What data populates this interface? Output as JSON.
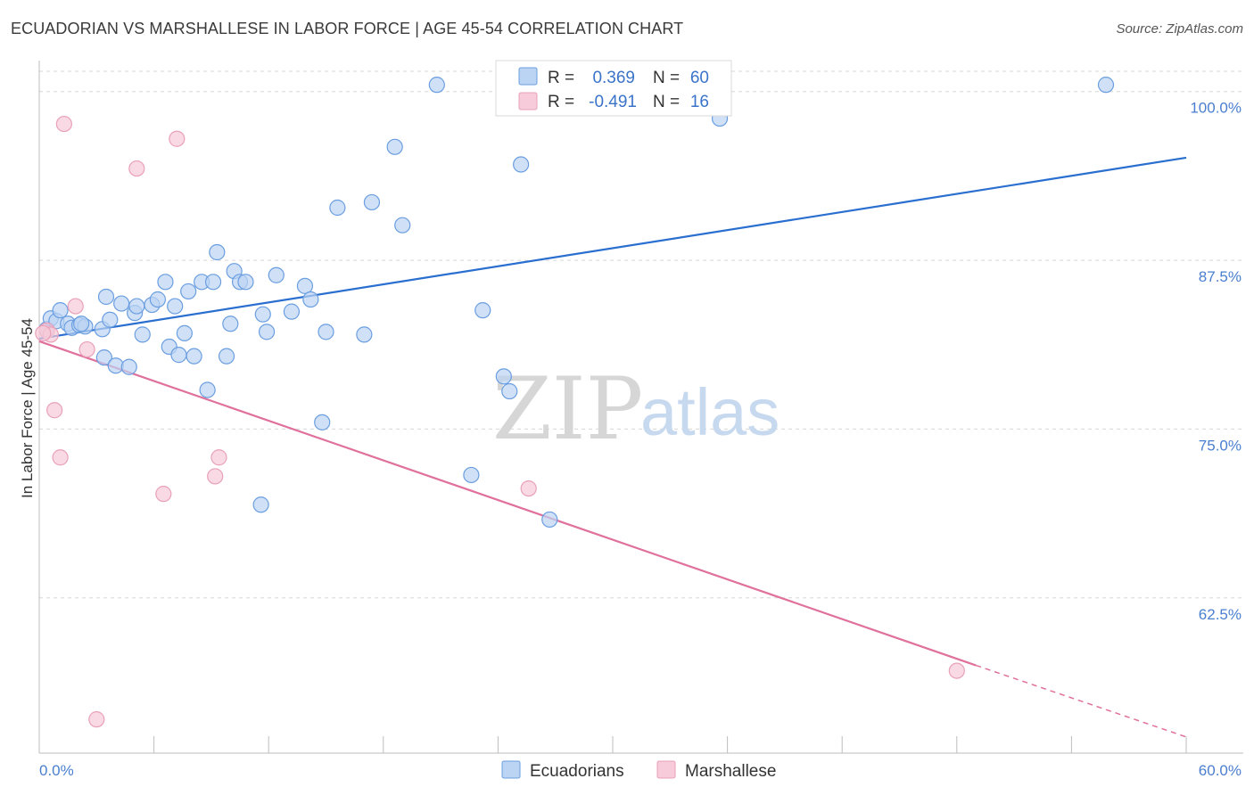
{
  "title": "ECUADORIAN VS MARSHALLESE IN LABOR FORCE | AGE 45-54 CORRELATION CHART",
  "source": "Source: ZipAtlas.com",
  "watermark": {
    "zip": "ZIP",
    "atlas": "atlas"
  },
  "legend_top": {
    "r_label": "R =",
    "n_label": "N =",
    "rows": [
      {
        "series": "Ecuadorians",
        "r": "0.369",
        "n": "60"
      },
      {
        "series": "Marshallese",
        "r": "-0.491",
        "n": "16"
      }
    ]
  },
  "chart_data": {
    "type": "scatter",
    "title": "ECUADORIAN VS MARSHALLESE IN LABOR FORCE | AGE 45-54 CORRELATION CHART",
    "xlabel": "",
    "ylabel": "In Labor Force | Age 45-54",
    "xlim": [
      0,
      60
    ],
    "ylim": [
      51,
      101.5
    ],
    "x_tick_labels": [
      {
        "value": 0,
        "label": "0.0%"
      },
      {
        "value": 60,
        "label": "60.0%"
      }
    ],
    "x_minor_ticks": [
      6,
      12,
      18,
      24,
      30,
      36,
      42,
      48,
      54,
      60
    ],
    "y_ticks": [
      {
        "value": 100,
        "label": "100.0%"
      },
      {
        "value": 87.5,
        "label": "87.5%"
      },
      {
        "value": 75,
        "label": "75.0%"
      },
      {
        "value": 62.5,
        "label": "62.5%"
      }
    ],
    "series": [
      {
        "name": "Ecuadorians",
        "color": "#6a9ee0",
        "fill": "#bcd4f3",
        "trend": {
          "x0": 0,
          "y0": 81.7,
          "x1": 60,
          "y1": 95.1,
          "color": "#2a6fd0"
        },
        "points": [
          [
            0.4,
            82.4
          ],
          [
            0.6,
            83.2
          ],
          [
            0.9,
            83.0
          ],
          [
            1.1,
            83.8
          ],
          [
            1.5,
            82.8
          ],
          [
            1.7,
            82.5
          ],
          [
            2.1,
            82.7
          ],
          [
            2.4,
            82.6
          ],
          [
            3.3,
            82.4
          ],
          [
            3.4,
            80.3
          ],
          [
            3.5,
            84.8
          ],
          [
            3.7,
            83.1
          ],
          [
            4.0,
            79.7
          ],
          [
            4.3,
            84.3
          ],
          [
            4.7,
            79.6
          ],
          [
            5.0,
            83.6
          ],
          [
            5.1,
            84.1
          ],
          [
            5.4,
            82.0
          ],
          [
            5.9,
            84.2
          ],
          [
            6.2,
            84.6
          ],
          [
            6.6,
            85.9
          ],
          [
            6.8,
            81.1
          ],
          [
            7.1,
            84.1
          ],
          [
            7.3,
            80.5
          ],
          [
            7.6,
            82.1
          ],
          [
            7.8,
            85.2
          ],
          [
            8.1,
            80.4
          ],
          [
            8.5,
            85.9
          ],
          [
            8.8,
            77.9
          ],
          [
            9.1,
            85.9
          ],
          [
            9.3,
            88.1
          ],
          [
            9.8,
            80.4
          ],
          [
            10.0,
            82.8
          ],
          [
            10.2,
            86.7
          ],
          [
            10.5,
            85.9
          ],
          [
            10.8,
            85.9
          ],
          [
            11.6,
            69.4
          ],
          [
            11.7,
            83.5
          ],
          [
            11.9,
            82.2
          ],
          [
            12.4,
            86.4
          ],
          [
            13.2,
            83.7
          ],
          [
            13.9,
            85.6
          ],
          [
            14.2,
            84.6
          ],
          [
            14.8,
            75.5
          ],
          [
            15.0,
            82.2
          ],
          [
            15.6,
            91.4
          ],
          [
            17.0,
            82.0
          ],
          [
            17.4,
            91.8
          ],
          [
            18.6,
            95.9
          ],
          [
            19.0,
            90.1
          ],
          [
            20.8,
            100.5
          ],
          [
            22.6,
            71.6
          ],
          [
            23.2,
            83.8
          ],
          [
            24.3,
            78.9
          ],
          [
            24.6,
            77.8
          ],
          [
            25.2,
            94.6
          ],
          [
            26.7,
            68.3
          ],
          [
            35.6,
            98.0
          ],
          [
            55.8,
            100.5
          ],
          [
            2.2,
            82.8
          ]
        ]
      },
      {
        "name": "Marshallese",
        "color": "#e9a0b8",
        "fill": "#f7cbd9",
        "trend": {
          "x0": 0,
          "y0": 81.5,
          "x1": 49,
          "y1": 57.5,
          "dash_x1": 60,
          "dash_y1": 52.2,
          "color": "#e0709c"
        },
        "points": [
          [
            0.4,
            82.3
          ],
          [
            0.6,
            82.0
          ],
          [
            0.8,
            76.4
          ],
          [
            1.1,
            72.9
          ],
          [
            1.3,
            97.6
          ],
          [
            1.9,
            84.1
          ],
          [
            2.5,
            80.9
          ],
          [
            3.0,
            53.5
          ],
          [
            5.1,
            94.3
          ],
          [
            6.5,
            70.2
          ],
          [
            7.2,
            96.5
          ],
          [
            9.2,
            71.5
          ],
          [
            9.4,
            72.9
          ],
          [
            25.6,
            70.6
          ],
          [
            48.0,
            57.1
          ],
          [
            0.2,
            82.1
          ]
        ]
      }
    ],
    "legend_bottom": [
      "Ecuadorians",
      "Marshallese"
    ],
    "grid": "horizontal-dashed"
  }
}
